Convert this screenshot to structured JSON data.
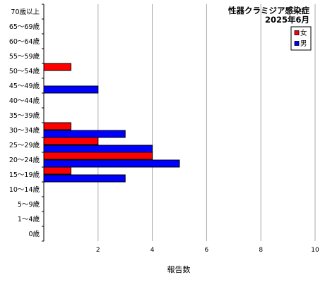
{
  "chart_data": {
    "type": "bar",
    "orientation": "horizontal",
    "title": "性器クラミジア感染症",
    "subtitle": "2025年6月",
    "xlabel": "報告数",
    "ylabel": "",
    "xlim": [
      0,
      10
    ],
    "xticks": [
      "2",
      "4",
      "6",
      "8",
      "10"
    ],
    "grid": true,
    "legend_position": "top-right",
    "categories": [
      "70歳以上",
      "65～69歳",
      "60～64歳",
      "55～59歳",
      "50～54歳",
      "45～49歳",
      "40～44歳",
      "35～39歳",
      "30～34歳",
      "25～29歳",
      "20～24歳",
      "15～19歳",
      "10～14歳",
      "5～9歳",
      "1～4歳",
      "0歳"
    ],
    "series": [
      {
        "name": "女",
        "color": "#ff0000",
        "values": [
          0,
          0,
          0,
          0,
          1,
          0,
          0,
          0,
          1,
          2,
          4,
          1,
          0,
          0,
          0,
          0
        ]
      },
      {
        "name": "男",
        "color": "#0000ff",
        "values": [
          0,
          0,
          0,
          0,
          0,
          2,
          0,
          0,
          3,
          4,
          5,
          3,
          0,
          0,
          0,
          0
        ]
      }
    ]
  }
}
